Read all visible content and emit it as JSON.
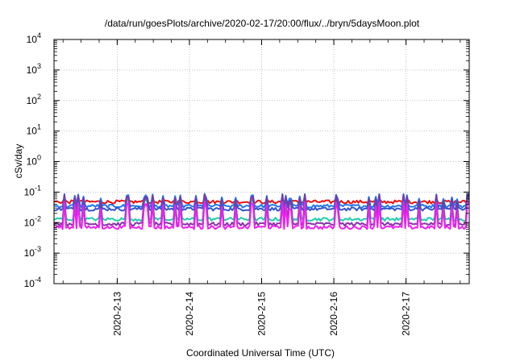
{
  "chart_data": {
    "type": "line",
    "title": "/data/run/goesPlots/archive/2020-02-17/20:00/flux/../bryn/5daysMoon.plot",
    "xlabel": "Coordinated Universal Time (UTC)",
    "ylabel": "cSv/day",
    "y_scale": "log",
    "ylim": [
      0.0001,
      10000
    ],
    "xlim": [
      "2020-02-12T03:00",
      "2020-02-17T21:00"
    ],
    "grid": true,
    "x_ticks": [
      "2020-2-13",
      "2020-2-14",
      "2020-2-15",
      "2020-2-16",
      "2020-2-17"
    ],
    "y_ticks": [
      {
        "base": "10",
        "exp": "-4"
      },
      {
        "base": "10",
        "exp": "-3"
      },
      {
        "base": "10",
        "exp": "-2"
      },
      {
        "base": "10",
        "exp": "-1"
      },
      {
        "base": "10",
        "exp": "0"
      },
      {
        "base": "10",
        "exp": "1"
      },
      {
        "base": "10",
        "exp": "2"
      },
      {
        "base": "10",
        "exp": "3"
      },
      {
        "base": "10",
        "exp": "4"
      }
    ],
    "series": [
      {
        "color": "#ee1111",
        "baseline": 0.048,
        "spike_to": 0.085
      },
      {
        "color": "#2277ee",
        "baseline": 0.035,
        "spike_to": 0.09
      },
      {
        "color": "#3355cc",
        "baseline": 0.028,
        "spike_to": 0.08
      },
      {
        "color": "#22ccaa",
        "baseline": 0.013,
        "spike_to": 0.07
      },
      {
        "color": "#8833aa",
        "baseline": 0.009,
        "spike_to": 0.085
      },
      {
        "color": "#ee22ee",
        "baseline": 0.007,
        "spike_to": 0.05
      }
    ]
  }
}
